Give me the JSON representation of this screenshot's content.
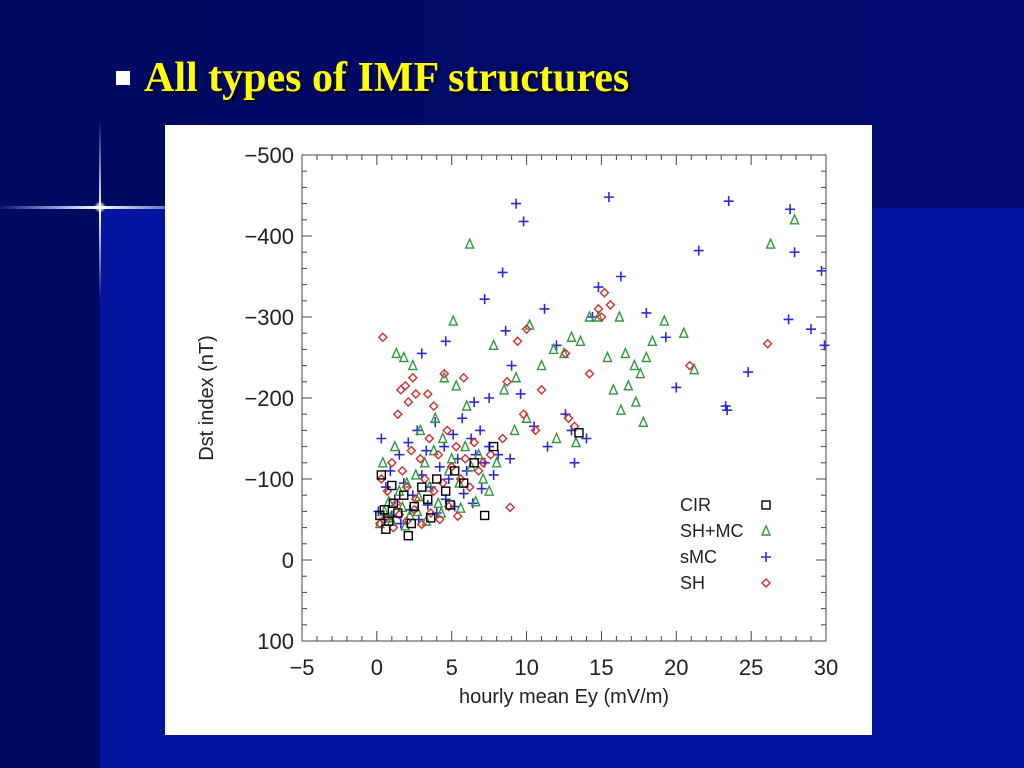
{
  "slide": {
    "title": "All types of IMF structures"
  },
  "colors": {
    "background_dark": "#000a6e",
    "background_blue": "#04149e",
    "title": "#ffff00",
    "bullet": "#ffffff"
  },
  "chart_data": {
    "type": "scatter",
    "title": "",
    "xlabel": "hourly mean Ey (mV/m)",
    "ylabel": "Dst index (nT)",
    "xlim": [
      -5,
      30
    ],
    "ylim": [
      100,
      -500
    ],
    "x_ticks": [
      -5,
      0,
      5,
      10,
      15,
      20,
      25,
      30
    ],
    "x_tick_labels": [
      "−5",
      "0",
      "5",
      "10",
      "15",
      "20",
      "25",
      "30"
    ],
    "y_ticks": [
      -500,
      -400,
      -300,
      -200,
      -100,
      0,
      100
    ],
    "y_tick_labels": [
      "−500",
      "−400",
      "−300",
      "−200",
      "−100",
      "0",
      "100"
    ],
    "grid": false,
    "legend_position": "bottom-right",
    "series": [
      {
        "name": "CIR",
        "marker": "square",
        "color": "#000000",
        "points": [
          [
            0.2,
            -55
          ],
          [
            0.5,
            -62
          ],
          [
            0.8,
            -48
          ],
          [
            1.1,
            -70
          ],
          [
            1.4,
            -58
          ],
          [
            1.8,
            -80
          ],
          [
            2.1,
            -30
          ],
          [
            2.5,
            -66
          ],
          [
            3.0,
            -90
          ],
          [
            3.4,
            -75
          ],
          [
            4.0,
            -100
          ],
          [
            4.6,
            -85
          ],
          [
            5.2,
            -110
          ],
          [
            5.8,
            -95
          ],
          [
            6.5,
            -120
          ],
          [
            7.2,
            -55
          ],
          [
            7.8,
            -140
          ],
          [
            0.3,
            -105
          ],
          [
            1.0,
            -92
          ],
          [
            2.3,
            -45
          ],
          [
            13.5,
            -157
          ],
          [
            0.6,
            -38
          ],
          [
            3.6,
            -52
          ],
          [
            4.9,
            -68
          ]
        ]
      },
      {
        "name": "SH+MC",
        "marker": "triangle",
        "color": "#2e9a3c",
        "points": [
          [
            6.2,
            -390
          ],
          [
            5.1,
            -295
          ],
          [
            1.3,
            -255
          ],
          [
            1.8,
            -250
          ],
          [
            2.4,
            -240
          ],
          [
            4.5,
            -225
          ],
          [
            5.3,
            -215
          ],
          [
            6.0,
            -190
          ],
          [
            7.8,
            -265
          ],
          [
            10.2,
            -290
          ],
          [
            11.8,
            -260
          ],
          [
            13.0,
            -275
          ],
          [
            13.6,
            -270
          ],
          [
            14.8,
            -300
          ],
          [
            15.4,
            -250
          ],
          [
            16.2,
            -300
          ],
          [
            16.6,
            -255
          ],
          [
            17.2,
            -240
          ],
          [
            17.6,
            -230
          ],
          [
            18.0,
            -250
          ],
          [
            18.4,
            -270
          ],
          [
            19.2,
            -295
          ],
          [
            20.5,
            -280
          ],
          [
            21.2,
            -235
          ],
          [
            15.8,
            -210
          ],
          [
            16.8,
            -215
          ],
          [
            17.3,
            -195
          ],
          [
            16.3,
            -185
          ],
          [
            17.8,
            -170
          ],
          [
            14.2,
            -300
          ],
          [
            26.3,
            -390
          ],
          [
            27.9,
            -420
          ],
          [
            12.5,
            -255
          ],
          [
            11.0,
            -240
          ],
          [
            9.3,
            -225
          ],
          [
            8.5,
            -210
          ],
          [
            0.5,
            -60
          ],
          [
            0.8,
            -72
          ],
          [
            1.0,
            -48
          ],
          [
            1.5,
            -85
          ],
          [
            1.7,
            -65
          ],
          [
            2.0,
            -95
          ],
          [
            2.2,
            -55
          ],
          [
            2.6,
            -105
          ],
          [
            2.8,
            -78
          ],
          [
            3.2,
            -120
          ],
          [
            3.5,
            -90
          ],
          [
            3.8,
            -135
          ],
          [
            4.1,
            -70
          ],
          [
            4.4,
            -150
          ],
          [
            4.8,
            -110
          ],
          [
            5.0,
            -125
          ],
          [
            5.5,
            -95
          ],
          [
            5.9,
            -140
          ],
          [
            6.3,
            -115
          ],
          [
            6.8,
            -130
          ],
          [
            7.1,
            -100
          ],
          [
            7.5,
            -85
          ],
          [
            8.0,
            -120
          ],
          [
            9.2,
            -160
          ],
          [
            10.0,
            -175
          ],
          [
            12.0,
            -150
          ],
          [
            13.3,
            -145
          ],
          [
            0.4,
            -120
          ],
          [
            1.2,
            -140
          ],
          [
            2.9,
            -160
          ],
          [
            3.9,
            -175
          ],
          [
            0.2,
            -45
          ],
          [
            0.9,
            -52
          ],
          [
            1.9,
            -42
          ],
          [
            2.7,
            -60
          ],
          [
            3.3,
            -48
          ],
          [
            4.3,
            -58
          ],
          [
            5.6,
            -64
          ],
          [
            6.6,
            -72
          ]
        ]
      },
      {
        "name": "sMC",
        "marker": "plus",
        "color": "#2b2bd6",
        "points": [
          [
            15.5,
            -448
          ],
          [
            9.3,
            -440
          ],
          [
            9.8,
            -418
          ],
          [
            23.5,
            -443
          ],
          [
            27.6,
            -433
          ],
          [
            8.4,
            -355
          ],
          [
            16.3,
            -350
          ],
          [
            7.2,
            -322
          ],
          [
            11.2,
            -310
          ],
          [
            14.8,
            -337
          ],
          [
            21.5,
            -382
          ],
          [
            27.9,
            -380
          ],
          [
            29.7,
            -357
          ],
          [
            8.6,
            -283
          ],
          [
            4.6,
            -270
          ],
          [
            3.0,
            -255
          ],
          [
            9.0,
            -240
          ],
          [
            18.0,
            -305
          ],
          [
            14.4,
            -300
          ],
          [
            12.0,
            -265
          ],
          [
            19.3,
            -275
          ],
          [
            27.5,
            -297
          ],
          [
            29.0,
            -285
          ],
          [
            29.9,
            -265
          ],
          [
            24.8,
            -232
          ],
          [
            20.0,
            -213
          ],
          [
            23.3,
            -190
          ],
          [
            23.4,
            -185
          ],
          [
            6.5,
            -195
          ],
          [
            7.5,
            -200
          ],
          [
            9.6,
            -205
          ],
          [
            12.6,
            -180
          ],
          [
            13.0,
            -160
          ],
          [
            14.0,
            -150
          ],
          [
            13.2,
            -120
          ],
          [
            10.5,
            -165
          ],
          [
            11.4,
            -140
          ],
          [
            8.9,
            -125
          ],
          [
            0.3,
            -150
          ],
          [
            0.6,
            -90
          ],
          [
            0.9,
            -110
          ],
          [
            1.2,
            -75
          ],
          [
            1.5,
            -130
          ],
          [
            1.8,
            -95
          ],
          [
            2.1,
            -145
          ],
          [
            2.4,
            -80
          ],
          [
            2.7,
            -160
          ],
          [
            3.0,
            -105
          ],
          [
            3.3,
            -135
          ],
          [
            3.6,
            -90
          ],
          [
            3.9,
            -170
          ],
          [
            4.2,
            -115
          ],
          [
            4.5,
            -140
          ],
          [
            4.8,
            -100
          ],
          [
            5.1,
            -155
          ],
          [
            5.4,
            -125
          ],
          [
            5.7,
            -175
          ],
          [
            6.0,
            -110
          ],
          [
            6.3,
            -150
          ],
          [
            6.6,
            -130
          ],
          [
            6.9,
            -160
          ],
          [
            7.2,
            -120
          ],
          [
            7.5,
            -140
          ],
          [
            7.8,
            -105
          ],
          [
            8.1,
            -130
          ],
          [
            0.1,
            -60
          ],
          [
            0.5,
            -50
          ],
          [
            1.0,
            -55
          ],
          [
            1.6,
            -45
          ],
          [
            2.2,
            -62
          ],
          [
            2.8,
            -50
          ],
          [
            3.4,
            -68
          ],
          [
            4.0,
            -58
          ],
          [
            4.6,
            -75
          ],
          [
            5.2,
            -66
          ],
          [
            5.8,
            -82
          ],
          [
            6.4,
            -70
          ],
          [
            7.0,
            -88
          ]
        ]
      },
      {
        "name": "SH",
        "marker": "diamond",
        "color": "#d43030",
        "points": [
          [
            0.4,
            -275
          ],
          [
            4.5,
            -230
          ],
          [
            5.8,
            -225
          ],
          [
            2.4,
            -225
          ],
          [
            1.9,
            -215
          ],
          [
            2.6,
            -205
          ],
          [
            1.6,
            -210
          ],
          [
            2.1,
            -195
          ],
          [
            1.4,
            -180
          ],
          [
            3.4,
            -205
          ],
          [
            3.8,
            -190
          ],
          [
            15.2,
            -330
          ],
          [
            15.6,
            -315
          ],
          [
            14.8,
            -310
          ],
          [
            15.0,
            -300
          ],
          [
            12.6,
            -255
          ],
          [
            14.2,
            -230
          ],
          [
            26.1,
            -267
          ],
          [
            20.9,
            -240
          ],
          [
            10.0,
            -285
          ],
          [
            9.4,
            -270
          ],
          [
            8.7,
            -220
          ],
          [
            11.0,
            -210
          ],
          [
            12.8,
            -175
          ],
          [
            13.2,
            -165
          ],
          [
            9.8,
            -180
          ],
          [
            10.6,
            -160
          ],
          [
            8.4,
            -150
          ],
          [
            7.6,
            -130
          ],
          [
            0.3,
            -100
          ],
          [
            0.7,
            -85
          ],
          [
            1.0,
            -120
          ],
          [
            1.3,
            -70
          ],
          [
            1.7,
            -110
          ],
          [
            2.0,
            -90
          ],
          [
            2.3,
            -135
          ],
          [
            2.6,
            -75
          ],
          [
            2.9,
            -125
          ],
          [
            3.2,
            -100
          ],
          [
            3.5,
            -150
          ],
          [
            3.8,
            -85
          ],
          [
            4.1,
            -130
          ],
          [
            4.4,
            -95
          ],
          [
            4.7,
            -160
          ],
          [
            5.0,
            -115
          ],
          [
            5.3,
            -140
          ],
          [
            5.6,
            -100
          ],
          [
            5.9,
            -125
          ],
          [
            6.2,
            -90
          ],
          [
            6.5,
            -145
          ],
          [
            6.8,
            -110
          ],
          [
            7.1,
            -120
          ],
          [
            0.2,
            -45
          ],
          [
            0.6,
            -52
          ],
          [
            1.1,
            -40
          ],
          [
            1.5,
            -56
          ],
          [
            2.0,
            -48
          ],
          [
            2.5,
            -62
          ],
          [
            3.0,
            -44
          ],
          [
            3.6,
            -58
          ],
          [
            4.2,
            -50
          ],
          [
            4.8,
            -66
          ],
          [
            5.4,
            -54
          ],
          [
            8.9,
            -65
          ]
        ]
      }
    ]
  }
}
